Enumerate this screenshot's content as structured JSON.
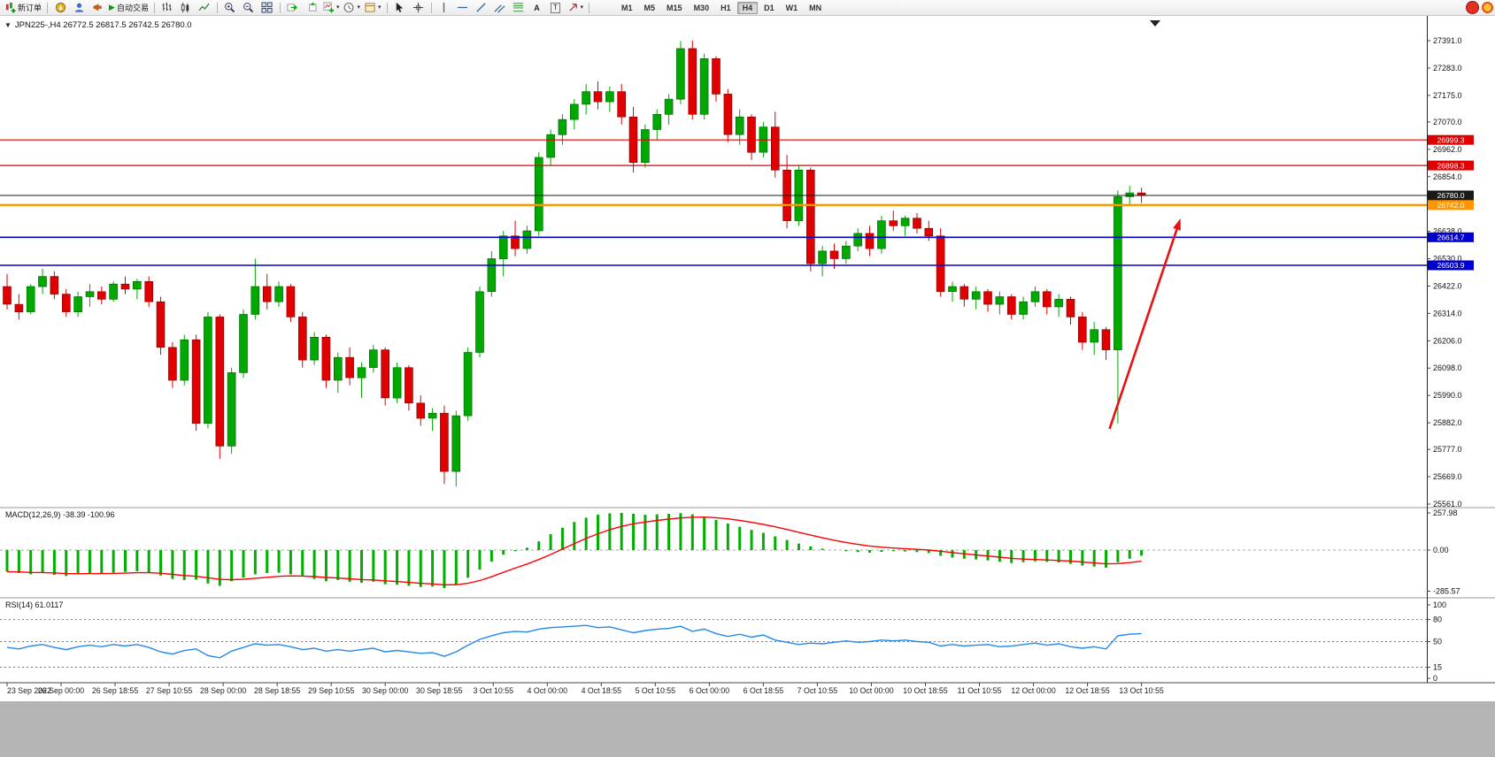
{
  "toolbar": {
    "new_order": "新订单",
    "autotrading": "自动交易",
    "text_tool": "A",
    "textbox_tool": "T",
    "timeframes": [
      "M1",
      "M5",
      "M15",
      "M30",
      "H1",
      "H4",
      "D1",
      "W1",
      "MN"
    ],
    "active_timeframe": "H4"
  },
  "chart": {
    "title_text": "JPN225-,H4 26772.5 26817.5 26742.5 26780.0"
  },
  "chart_data": {
    "type": "candlestick",
    "symbol": "JPN225-",
    "period": "H4",
    "ohlc": {
      "open": 26772.5,
      "high": 26817.5,
      "low": 26742.5,
      "close": 26780.0
    },
    "colors": {
      "bull": "#00a800",
      "bear": "#e00000"
    },
    "price_axis": {
      "visible_max": 27391.0,
      "visible_min": 25561.0,
      "ticks": [
        27391.0,
        27283.0,
        27175.0,
        27070.0,
        26962.0,
        26854.0,
        26747.0,
        26638.0,
        26530.0,
        26422.0,
        26314.0,
        26206.0,
        26098.0,
        25990.0,
        25882.0,
        25777.0,
        25669.0,
        25561.0
      ]
    },
    "hlines": [
      {
        "price": 26999.3,
        "label": "26999.3",
        "color": "#e00000",
        "width": 1.2
      },
      {
        "price": 26898.3,
        "label": "26898.3",
        "color": "#e00000",
        "width": 1.2
      },
      {
        "price": 26780.0,
        "label": "26780.0",
        "color": "#1a1a1a",
        "width": 1.0,
        "kind": "bid"
      },
      {
        "price": 26742.0,
        "label": "26742.0",
        "color": "#ff9500",
        "width": 2.4
      },
      {
        "price": 26614.7,
        "label": "26614.7",
        "color": "#0000d0",
        "width": 1.6
      },
      {
        "price": 26503.9,
        "label": "26503.9",
        "color": "#0000d0",
        "width": 1.6
      }
    ],
    "candles": [
      [
        26420,
        26470,
        26330,
        26350
      ],
      [
        26350,
        26390,
        26290,
        26320
      ],
      [
        26320,
        26430,
        26310,
        26420
      ],
      [
        26420,
        26490,
        26390,
        26460
      ],
      [
        26460,
        26480,
        26370,
        26390
      ],
      [
        26390,
        26410,
        26300,
        26320
      ],
      [
        26320,
        26400,
        26300,
        26380
      ],
      [
        26380,
        26430,
        26340,
        26400
      ],
      [
        26400,
        26420,
        26350,
        26370
      ],
      [
        26370,
        26440,
        26360,
        26430
      ],
      [
        26430,
        26460,
        26390,
        26410
      ],
      [
        26410,
        26450,
        26370,
        26440
      ],
      [
        26440,
        26460,
        26340,
        26360
      ],
      [
        26360,
        26380,
        26150,
        26180
      ],
      [
        26180,
        26200,
        26020,
        26050
      ],
      [
        26050,
        26230,
        26030,
        26210
      ],
      [
        26210,
        26230,
        25850,
        25880
      ],
      [
        25880,
        26320,
        25860,
        26300
      ],
      [
        26300,
        26310,
        25740,
        25790
      ],
      [
        25790,
        26100,
        25760,
        26080
      ],
      [
        26080,
        26330,
        26060,
        26310
      ],
      [
        26310,
        26530,
        26290,
        26420
      ],
      [
        26420,
        26470,
        26330,
        26360
      ],
      [
        26360,
        26440,
        26340,
        26420
      ],
      [
        26420,
        26430,
        26280,
        26300
      ],
      [
        26300,
        26320,
        26100,
        26130
      ],
      [
        26130,
        26240,
        26110,
        26220
      ],
      [
        26220,
        26230,
        26020,
        26050
      ],
      [
        26050,
        26160,
        26000,
        26140
      ],
      [
        26140,
        26180,
        26030,
        26060
      ],
      [
        26060,
        26120,
        25980,
        26100
      ],
      [
        26100,
        26190,
        26080,
        26170
      ],
      [
        26170,
        26180,
        25950,
        25980
      ],
      [
        25980,
        26120,
        25960,
        26100
      ],
      [
        26100,
        26110,
        25930,
        25960
      ],
      [
        25960,
        25990,
        25870,
        25900
      ],
      [
        25900,
        25940,
        25850,
        25920
      ],
      [
        25920,
        25950,
        25640,
        25690
      ],
      [
        25690,
        25930,
        25630,
        25910
      ],
      [
        25910,
        26180,
        25890,
        26160
      ],
      [
        26160,
        26420,
        26140,
        26400
      ],
      [
        26400,
        26560,
        26380,
        26530
      ],
      [
        26530,
        26640,
        26460,
        26620
      ],
      [
        26620,
        26680,
        26540,
        26570
      ],
      [
        26570,
        26660,
        26550,
        26640
      ],
      [
        26640,
        26950,
        26620,
        26930
      ],
      [
        26930,
        27040,
        26900,
        27020
      ],
      [
        27020,
        27100,
        26980,
        27080
      ],
      [
        27080,
        27160,
        27040,
        27140
      ],
      [
        27140,
        27220,
        27100,
        27190
      ],
      [
        27190,
        27230,
        27120,
        27150
      ],
      [
        27150,
        27210,
        27110,
        27190
      ],
      [
        27190,
        27220,
        27060,
        27090
      ],
      [
        27090,
        27130,
        26870,
        26910
      ],
      [
        26910,
        27060,
        26890,
        27040
      ],
      [
        27040,
        27120,
        27000,
        27100
      ],
      [
        27100,
        27180,
        27060,
        27160
      ],
      [
        27160,
        27390,
        27140,
        27360
      ],
      [
        27360,
        27391,
        27080,
        27100
      ],
      [
        27100,
        27340,
        27080,
        27320
      ],
      [
        27320,
        27330,
        27150,
        27180
      ],
      [
        27180,
        27200,
        26990,
        27020
      ],
      [
        27020,
        27120,
        26980,
        27090
      ],
      [
        27090,
        27100,
        26920,
        26950
      ],
      [
        26950,
        27070,
        26930,
        27050
      ],
      [
        27050,
        27110,
        26850,
        26880
      ],
      [
        26880,
        26940,
        26650,
        26680
      ],
      [
        26680,
        26900,
        26660,
        26880
      ],
      [
        26880,
        26890,
        26480,
        26510
      ],
      [
        26510,
        26580,
        26460,
        26560
      ],
      [
        26560,
        26590,
        26490,
        26530
      ],
      [
        26530,
        26600,
        26510,
        26580
      ],
      [
        26580,
        26650,
        26560,
        26630
      ],
      [
        26630,
        26660,
        26540,
        26570
      ],
      [
        26570,
        26700,
        26550,
        26680
      ],
      [
        26680,
        26720,
        26640,
        26660
      ],
      [
        26660,
        26700,
        26620,
        26690
      ],
      [
        26690,
        26710,
        26630,
        26650
      ],
      [
        26650,
        26680,
        26600,
        26620
      ],
      [
        26620,
        26650,
        26380,
        26400
      ],
      [
        26400,
        26440,
        26360,
        26420
      ],
      [
        26420,
        26430,
        26340,
        26370
      ],
      [
        26370,
        26420,
        26330,
        26400
      ],
      [
        26400,
        26410,
        26320,
        26350
      ],
      [
        26350,
        26400,
        26310,
        26380
      ],
      [
        26380,
        26390,
        26290,
        26310
      ],
      [
        26310,
        26380,
        26290,
        26360
      ],
      [
        26360,
        26420,
        26340,
        26400
      ],
      [
        26400,
        26410,
        26310,
        26340
      ],
      [
        26340,
        26390,
        26300,
        26370
      ],
      [
        26370,
        26380,
        26270,
        26300
      ],
      [
        26300,
        26320,
        26170,
        26200
      ],
      [
        26200,
        26280,
        26150,
        26250
      ],
      [
        26250,
        26260,
        26130,
        26170
      ],
      [
        26170,
        26800,
        25880,
        26775
      ],
      [
        26775,
        26818,
        26743,
        26790
      ],
      [
        26790,
        26810,
        26750,
        26780
      ]
    ],
    "time_labels": [
      "23 Sep 2022",
      "26 Sep 00:00",
      "26 Sep 18:55",
      "27 Sep 10:55",
      "28 Sep 00:00",
      "28 Sep 18:55",
      "29 Sep 10:55",
      "30 Sep 00:00",
      "30 Sep 18:55",
      "3 Oct 10:55",
      "4 Oct 00:00",
      "4 Oct 18:55",
      "5 Oct 10:55",
      "6 Oct 00:00",
      "6 Oct 18:55",
      "7 Oct 10:55",
      "10 Oct 00:00",
      "10 Oct 18:55",
      "11 Oct 10:55",
      "12 Oct 00:00",
      "12 Oct 18:55",
      "13 Oct 10:55"
    ],
    "macd": {
      "label": "MACD(12,26,9) -38.39 -100.96",
      "params": "12,26,9",
      "main_last": -38.39,
      "signal_last": -100.96,
      "axis_ticks": [
        257.98,
        0.0,
        -285.57
      ],
      "colors": {
        "histogram": "#00b000",
        "signal": "#ff0000"
      },
      "histogram": [
        -150,
        -160,
        -168,
        -160,
        -172,
        -180,
        -168,
        -160,
        -163,
        -157,
        -152,
        -147,
        -157,
        -176,
        -200,
        -208,
        -205,
        -232,
        -248,
        -216,
        -192,
        -168,
        -160,
        -157,
        -168,
        -184,
        -200,
        -216,
        -208,
        -220,
        -227,
        -220,
        -237,
        -240,
        -248,
        -256,
        -253,
        -264,
        -240,
        -192,
        -136,
        -80,
        -32,
        -8,
        16,
        60,
        110,
        155,
        195,
        225,
        245,
        255,
        258,
        252,
        245,
        248,
        252,
        256,
        248,
        232,
        210,
        185,
        162,
        140,
        120,
        95,
        70,
        45,
        25,
        10,
        0,
        -8,
        -14,
        -18,
        -12,
        -8,
        -10,
        -14,
        -20,
        -40,
        -52,
        -60,
        -66,
        -72,
        -82,
        -90,
        -84,
        -78,
        -82,
        -86,
        -95,
        -108,
        -115,
        -122,
        -85,
        -60,
        -38.39
      ]
    },
    "rsi": {
      "label": "RSI(14) 61.0117",
      "period": 14,
      "last": 61.0117,
      "axis_ticks": [
        100,
        80,
        50,
        15,
        0
      ],
      "levels": [
        80,
        50,
        15
      ],
      "color": "#2288ee",
      "values": [
        42,
        40,
        44,
        46,
        42,
        39,
        43,
        45,
        43,
        46,
        44,
        46,
        42,
        36,
        33,
        38,
        40,
        31,
        28,
        37,
        42,
        47,
        45,
        46,
        43,
        39,
        41,
        37,
        39,
        37,
        39,
        41,
        36,
        38,
        36,
        34,
        35,
        30,
        36,
        45,
        53,
        58,
        62,
        64,
        63,
        67,
        69,
        70,
        71,
        72,
        69,
        70,
        66,
        62,
        65,
        67,
        68,
        71,
        64,
        67,
        61,
        57,
        60,
        56,
        59,
        52,
        49,
        46,
        48,
        47,
        49,
        51,
        49,
        50,
        52,
        51,
        52,
        50,
        49,
        44,
        46,
        44,
        45,
        46,
        43,
        44,
        46,
        48,
        45,
        47,
        43,
        41,
        43,
        40,
        58,
        60,
        61.01
      ]
    },
    "annotation_arrow": {
      "color": "#e81010",
      "from": {
        "bar": 93.3,
        "price": 25858
      },
      "to": {
        "bar": 99.3,
        "price": 26689
      }
    }
  }
}
